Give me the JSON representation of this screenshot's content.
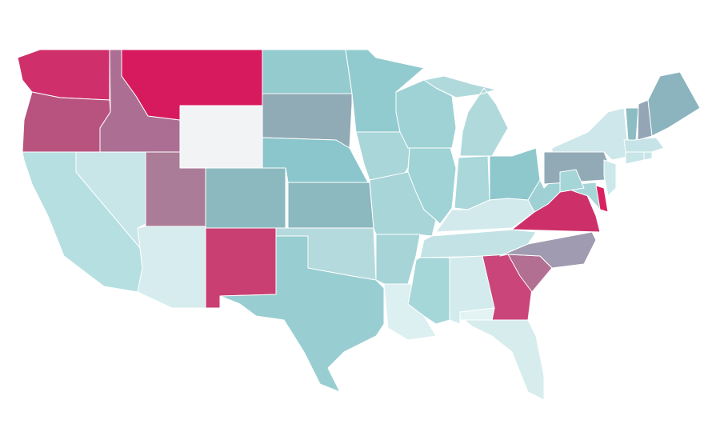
{
  "map": {
    "background": "#ffffff",
    "border_color": "#ffffff",
    "regions": [
      {
        "color": "#cf2f6a"
      },
      {
        "color": "#b85380"
      },
      {
        "color": "#ac6f93"
      },
      {
        "color": "#d71a5e"
      },
      {
        "color": "#f2f3f5"
      },
      {
        "color": "#c8e5e8"
      },
      {
        "color": "#b6dfe1"
      },
      {
        "color": "#ab7c98"
      },
      {
        "color": "#d6ecee"
      },
      {
        "color": "#8cb9bf"
      },
      {
        "color": "#c93f72"
      },
      {
        "color": "#93cbcf"
      },
      {
        "color": "#91abb6"
      },
      {
        "color": "#8ac6cc"
      },
      {
        "color": "#8cb8bf"
      },
      {
        "color": "#b4dadd"
      },
      {
        "color": "#98ced1"
      },
      {
        "color": "#92cbcf"
      },
      {
        "color": "#a8d6d9"
      },
      {
        "color": "#a8d5d8"
      },
      {
        "color": "#a6d4d7"
      },
      {
        "color": "#dceff1"
      },
      {
        "color": "#9fd2d5"
      },
      {
        "color": "#9fd3d6"
      },
      {
        "color": "#b0d9dc"
      },
      {
        "color": "#a9d7da"
      },
      {
        "color": "#8ec8cd"
      },
      {
        "color": "#d3eaec"
      },
      {
        "color": "#c2e2e5"
      },
      {
        "color": "#a5d6d8"
      },
      {
        "color": "#d3ebed"
      },
      {
        "color": "#d6eced"
      },
      {
        "color": "#c9457a"
      },
      {
        "color": "#e3f3f4"
      },
      {
        "color": "#b26f92"
      },
      {
        "color": "#a09bb0"
      },
      {
        "color": "#cd3068"
      },
      {
        "color": "#9fd1d4"
      },
      {
        "color": "#91aab6"
      },
      {
        "color": "#cde7ea"
      },
      {
        "color": "#a6d6d8"
      },
      {
        "color": "#d92161"
      },
      {
        "color": "#cde8ea"
      },
      {
        "color": "#c8e5e8"
      },
      {
        "color": "#c8e5e8"
      },
      {
        "color": "#c6e4e7"
      },
      {
        "color": "#8cbdc3"
      },
      {
        "color": "#94a6b5"
      },
      {
        "color": "#8cb4bf"
      },
      {
        "color": "#a6d5d8"
      }
    ]
  }
}
